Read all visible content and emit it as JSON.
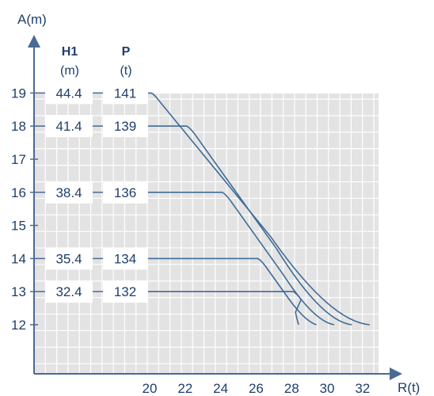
{
  "colors": {
    "axis": "#4a6a93",
    "line": "#3e6b96",
    "grid_bg": "#e3e3e3",
    "grid_line": "#ffffff",
    "text": "#1f3f6b"
  },
  "chart_data": {
    "type": "line",
    "ylabel": "A(m)",
    "xlabel": "R(t)",
    "x_ticks": [
      "20",
      "22",
      "24",
      "26",
      "28",
      "30",
      "32"
    ],
    "y_ticks": [
      "12",
      "13",
      "14",
      "15",
      "16",
      "17",
      "18",
      "19"
    ],
    "xlim": [
      20,
      32
    ],
    "ylim": [
      12,
      19
    ],
    "columns": {
      "h1": {
        "header": "H1",
        "unit": "(m)"
      },
      "p": {
        "header": "P",
        "unit": "(t)"
      }
    },
    "series": [
      {
        "h1": "44.4",
        "p": "141",
        "a": 19,
        "points": [
          [
            20,
            19
          ],
          [
            32.4,
            12
          ]
        ]
      },
      {
        "h1": "41.4",
        "p": "139",
        "a": 18,
        "points": [
          [
            22,
            18
          ],
          [
            31.4,
            12
          ]
        ]
      },
      {
        "h1": "38.4",
        "p": "136",
        "a": 16,
        "points": [
          [
            24,
            16
          ],
          [
            30.4,
            12
          ]
        ]
      },
      {
        "h1": "35.4",
        "p": "134",
        "a": 14,
        "points": [
          [
            26,
            14
          ],
          [
            29.4,
            12
          ]
        ]
      },
      {
        "h1": "32.4",
        "p": "132",
        "a": 13,
        "points": [
          [
            28,
            13
          ],
          [
            28.4,
            12
          ]
        ]
      }
    ]
  }
}
